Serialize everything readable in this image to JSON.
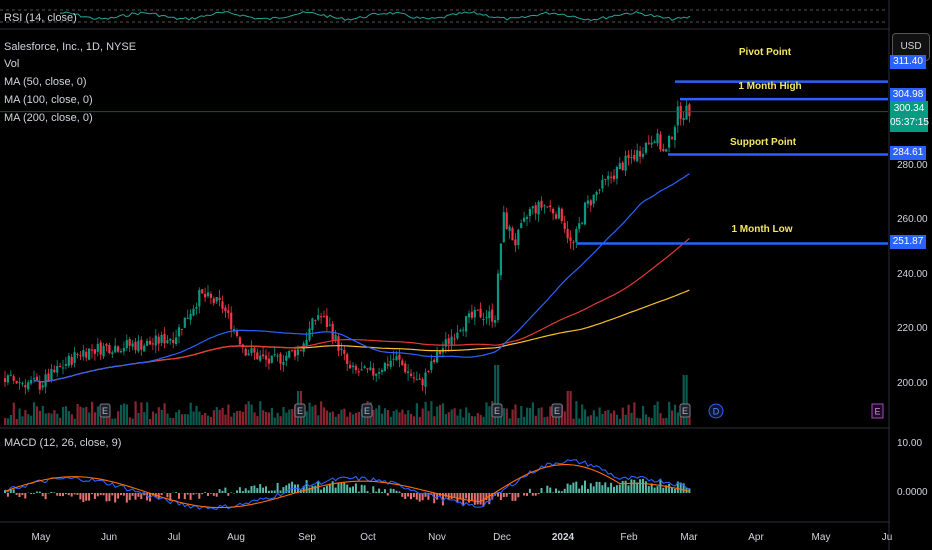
{
  "panels": {
    "rsi_label": "RSI (14, close)",
    "macd_label": "MACD (12, 26, close, 9)"
  },
  "legend": {
    "symbol": "Salesforce, Inc., 1D, NYSE",
    "vol": "Vol",
    "ma50": "MA (50, close, 0)",
    "ma100": "MA (100, close, 0)",
    "ma200": "MA (200, close, 0)"
  },
  "currency": "USD",
  "levels": [
    {
      "label": "Pivot Point",
      "price": 311.4,
      "tag": "311.40"
    },
    {
      "label": "1 Month High",
      "price": 304.98,
      "tag": "304.98"
    },
    {
      "label": "Support Point",
      "price": 284.61,
      "tag": "284.61"
    },
    {
      "label": "1 Month Low",
      "price": 251.87,
      "tag": "251.87"
    }
  ],
  "last_price": {
    "price": "300.34",
    "countdown": "05:37:15"
  },
  "colors": {
    "up": "#089981",
    "down": "#f23645",
    "ma50": "#2962ff",
    "ma100": "#e53935",
    "ma200": "#fbc02d",
    "level": "#2962ff"
  },
  "events": {
    "earnings_icon": "E",
    "dividend_icon": "D"
  },
  "chart_data": {
    "type": "candlestick",
    "title": "Salesforce, Inc., 1D, NYSE",
    "ylim": [
      185,
      318
    ],
    "price_ticks": [
      "280.00",
      "260.00",
      "240.00",
      "220.00",
      "200.00"
    ],
    "macd_ticks": [
      "10.00",
      "0.0000"
    ],
    "x_ticks": [
      "May",
      "Jun",
      "Jul",
      "Aug",
      "Sep",
      "Oct",
      "Nov",
      "Dec",
      "2024",
      "Feb",
      "Mar",
      "Apr",
      "May",
      "Ju"
    ],
    "series_close_by_month": [
      {
        "month": "May",
        "close": 200
      },
      {
        "month": "Jun",
        "close": 212
      },
      {
        "month": "Jul",
        "close": 225
      },
      {
        "month": "Aug",
        "close": 210
      },
      {
        "month": "Sep",
        "close": 218
      },
      {
        "month": "Oct",
        "close": 205
      },
      {
        "month": "Nov",
        "close": 222
      },
      {
        "month": "Dec",
        "close": 262
      },
      {
        "month": "Jan",
        "close": 268
      },
      {
        "month": "Feb",
        "close": 288
      },
      {
        "month": "Mar",
        "close": 300.34
      }
    ],
    "moving_averages": [
      "MA (50, close, 0)",
      "MA (100, close, 0)",
      "MA (200, close, 0)"
    ]
  }
}
